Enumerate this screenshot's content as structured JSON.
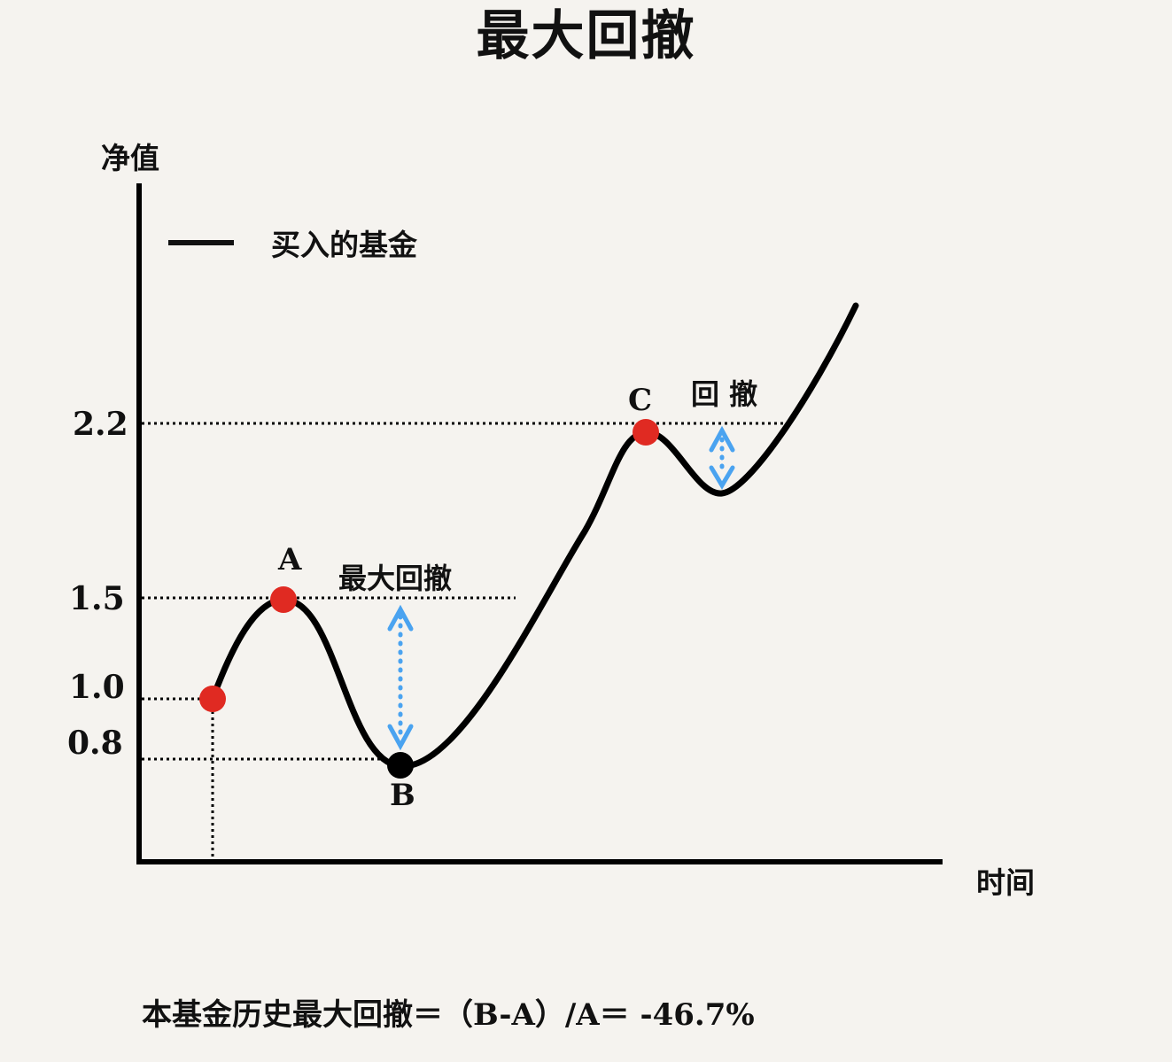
{
  "title": "最大回撤",
  "y_axis_label": "净值",
  "x_axis_label": "时间",
  "legend": {
    "label": "买入的基金"
  },
  "ticks": {
    "t22": "2.2",
    "t15": "1.5",
    "t10": "1.0",
    "t08": "0.8"
  },
  "points": {
    "a": "A",
    "b": "B",
    "c": "C"
  },
  "annotations": {
    "max_drawdown": "最大回撤",
    "drawdown": "回 撤"
  },
  "formula": {
    "prefix": "本基金历史最大回撤＝（",
    "expr": "B-A）/A＝ -46.7%"
  },
  "colors": {
    "background": "#f5f3ef",
    "line": "#000000",
    "peak_points": "#e02a22",
    "trough_point": "#000000",
    "drawdown_arrow": "#4aa3f0"
  },
  "chart_data": {
    "type": "line",
    "series": [
      {
        "name": "买入的基金",
        "marked_values": {
          "start": 1.0,
          "A": 1.5,
          "B": 0.8,
          "C": 2.2
        }
      }
    ],
    "yticks": [
      0.8,
      1.0,
      1.5,
      2.2
    ],
    "max_drawdown_pct": -46.7
  }
}
